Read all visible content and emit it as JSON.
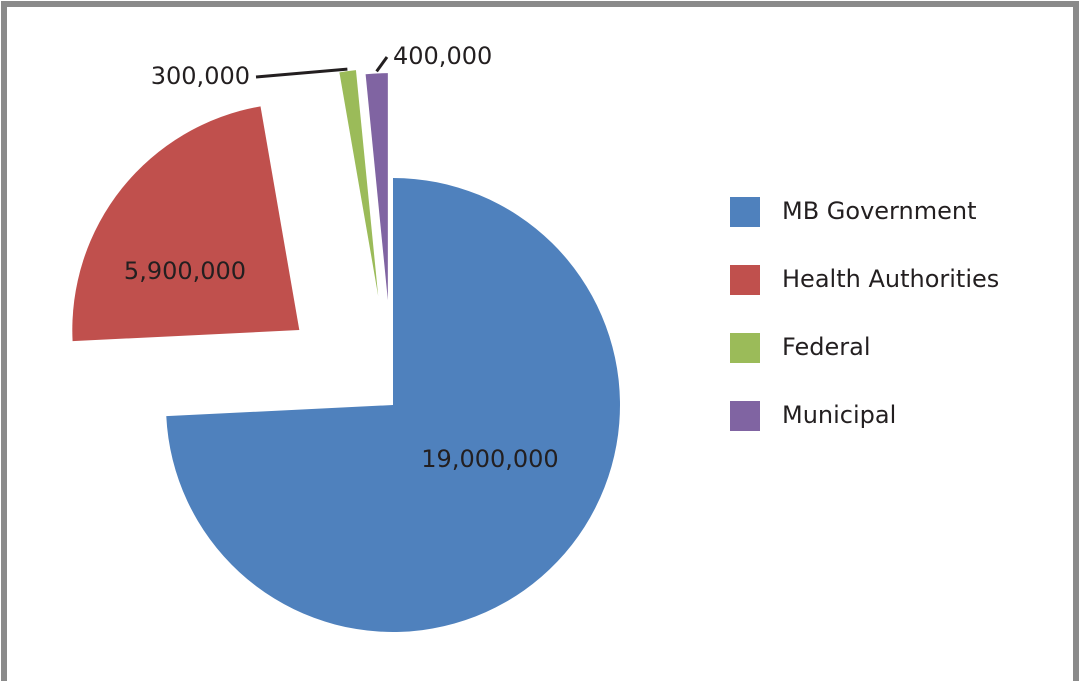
{
  "chart_data": {
    "type": "pie",
    "categories": [
      "MB Government",
      "Health Authorities",
      "Federal",
      "Municipal"
    ],
    "values": [
      19000000,
      5900000,
      300000,
      400000
    ],
    "value_labels": [
      "19,000,000",
      "5,900,000",
      "300,000",
      "400,000"
    ],
    "colors": [
      "#4f81bd",
      "#c0504d",
      "#9bbb59",
      "#8064a2"
    ],
    "legend": "right"
  }
}
